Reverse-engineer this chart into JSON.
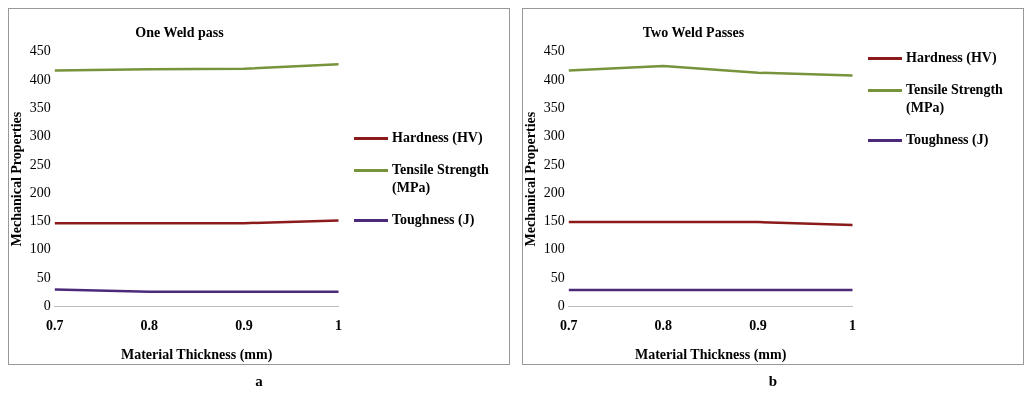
{
  "chart_data": [
    {
      "type": "line",
      "title": "One Weld pass",
      "xlabel": "Material Thickness (mm)",
      "ylabel": "Mechanical Properties",
      "categories": [
        "0.7",
        "0.8",
        "0.9",
        "1"
      ],
      "series": [
        {
          "name": "Hardness (HV)",
          "color": "#8b1a1a",
          "values": [
            147,
            147,
            147,
            152
          ]
        },
        {
          "name": "Tensile Strength (MPa)",
          "color": "#77933c",
          "values": [
            417,
            419,
            420,
            428
          ]
        },
        {
          "name": "Toughness (J)",
          "color": "#4b2a7a",
          "values": [
            30,
            26,
            26,
            26
          ]
        }
      ],
      "ylim": [
        0,
        450
      ],
      "yticks": [
        0,
        50,
        100,
        150,
        200,
        250,
        300,
        350,
        400,
        450
      ],
      "grid": false,
      "legend": "right",
      "marker": "none",
      "annotations": [
        "a"
      ]
    },
    {
      "type": "line",
      "title": "Two Weld Passes",
      "xlabel": "Material Thickness (mm)",
      "ylabel": "Mechanical Properties",
      "categories": [
        "0.7",
        "0.8",
        "0.9",
        "1"
      ],
      "series": [
        {
          "name": "Hardness (HV)",
          "color": "#8b1a1a",
          "values": [
            149,
            149,
            149,
            144
          ]
        },
        {
          "name": "Tensile Strength (MPa)",
          "color": "#77933c",
          "values": [
            417,
            425,
            413,
            408
          ]
        },
        {
          "name": "Toughness (J)",
          "color": "#4b2a7a",
          "values": [
            29,
            29,
            29,
            29
          ]
        }
      ],
      "ylim": [
        0,
        450
      ],
      "yticks": [
        0,
        50,
        100,
        150,
        200,
        250,
        300,
        350,
        400,
        450
      ],
      "grid": false,
      "legend": "top right",
      "marker": "none",
      "annotations": [
        "b"
      ]
    }
  ]
}
